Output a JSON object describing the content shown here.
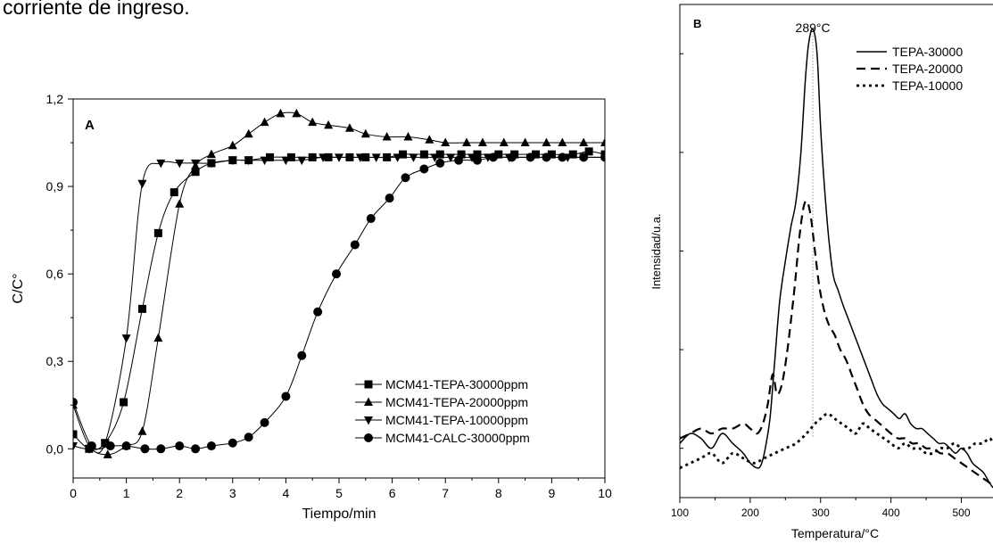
{
  "caption": "corriente de ingreso.",
  "chart_data": [
    {
      "id": "A",
      "type": "line",
      "panel_label": "A",
      "xlabel": "Tiempo/min",
      "ylabel": "C/C°",
      "xlim": [
        0,
        10
      ],
      "ylim": [
        -0.1,
        1.2
      ],
      "x_ticks": [
        0,
        1,
        2,
        3,
        4,
        5,
        6,
        7,
        8,
        9,
        10
      ],
      "x_tick_labels": [
        "0",
        "1",
        "2",
        "3",
        "4",
        "5",
        "6",
        "7",
        "8",
        "9",
        "10"
      ],
      "y_ticks": [
        0,
        0.3,
        0.6,
        0.9,
        1.2
      ],
      "y_tick_labels": [
        "0,0",
        "0,3",
        "0,6",
        "0,9",
        "1,2"
      ],
      "grid": false,
      "legend_position": "bottom-right",
      "series": [
        {
          "name": "MCM41-TEPA-30000ppm",
          "marker": "square",
          "x": [
            0,
            0.3,
            0.6,
            0.95,
            1.3,
            1.6,
            1.9,
            2.3,
            2.6,
            3.0,
            3.3,
            3.7,
            4.1,
            4.5,
            4.8,
            5.2,
            5.5,
            5.9,
            6.2,
            6.6,
            6.9,
            7.3,
            7.6,
            8.0,
            8.3,
            8.7,
            9.0,
            9.4,
            9.7,
            10.0
          ],
          "y": [
            0.05,
            0.0,
            0.02,
            0.16,
            0.48,
            0.74,
            0.88,
            0.95,
            0.98,
            0.99,
            0.99,
            1.0,
            1.0,
            1.0,
            1.0,
            1.0,
            1.0,
            1.0,
            1.01,
            1.01,
            1.01,
            1.01,
            1.01,
            1.01,
            1.01,
            1.01,
            1.01,
            1.01,
            1.02,
            1.01
          ]
        },
        {
          "name": "MCM41-TEPA-20000ppm",
          "marker": "triangle-up",
          "x": [
            0,
            0.3,
            0.65,
            1.0,
            1.3,
            1.6,
            2.0,
            2.3,
            2.6,
            3.0,
            3.3,
            3.6,
            3.9,
            4.2,
            4.5,
            4.8,
            5.2,
            5.5,
            5.9,
            6.3,
            6.7,
            7.0,
            7.4,
            7.7,
            8.1,
            8.5,
            8.9,
            9.2,
            9.6,
            10.0
          ],
          "y": [
            0.15,
            0.01,
            -0.02,
            0.01,
            0.06,
            0.38,
            0.84,
            0.97,
            1.01,
            1.04,
            1.08,
            1.12,
            1.15,
            1.15,
            1.12,
            1.11,
            1.1,
            1.08,
            1.07,
            1.07,
            1.06,
            1.05,
            1.05,
            1.05,
            1.05,
            1.05,
            1.05,
            1.05,
            1.05,
            1.05
          ]
        },
        {
          "name": "MCM41-TEPA-10000ppm",
          "marker": "triangle-down",
          "x": [
            0,
            0.3,
            0.6,
            1.0,
            1.3,
            1.65,
            2.0,
            2.3,
            2.6,
            3.0,
            3.3,
            3.6,
            4.0,
            4.3,
            4.7,
            5.0,
            5.4,
            5.7,
            6.1,
            6.4,
            6.8,
            7.1,
            7.5,
            7.8,
            8.2,
            8.6,
            8.9,
            9.3,
            9.6,
            10.0
          ],
          "y": [
            0.01,
            0.0,
            0.02,
            0.38,
            0.91,
            0.98,
            0.98,
            0.98,
            0.98,
            0.99,
            0.99,
            0.99,
            0.99,
            0.99,
            1.0,
            1.0,
            1.0,
            1.0,
            1.0,
            1.0,
            1.0,
            1.0,
            1.0,
            1.0,
            1.0,
            1.0,
            1.0,
            1.0,
            1.0,
            1.0
          ]
        },
        {
          "name": "MCM41-CALC-30000ppm",
          "marker": "circle",
          "x": [
            0,
            0.35,
            0.7,
            1.0,
            1.35,
            1.65,
            2.0,
            2.3,
            2.6,
            3.0,
            3.3,
            3.6,
            4.0,
            4.3,
            4.6,
            4.95,
            5.3,
            5.6,
            5.95,
            6.25,
            6.6,
            6.9,
            7.25,
            7.6,
            7.9,
            8.25,
            8.6,
            8.9,
            9.2,
            9.6,
            10.0
          ],
          "y": [
            0.16,
            0.01,
            0.01,
            0.01,
            0.0,
            0.0,
            0.01,
            0.0,
            0.01,
            0.02,
            0.04,
            0.09,
            0.18,
            0.32,
            0.47,
            0.6,
            0.7,
            0.79,
            0.86,
            0.93,
            0.96,
            0.98,
            0.99,
            0.99,
            1.0,
            1.0,
            1.0,
            1.0,
            1.0,
            1.0,
            1.0
          ]
        }
      ]
    },
    {
      "id": "B",
      "type": "line",
      "panel_label": "B",
      "xlabel": "Temperatura/°C",
      "ylabel": "Intensidad/u.a.",
      "xlim": [
        100,
        545
      ],
      "ylim": [
        0,
        1
      ],
      "x_ticks": [
        100,
        200,
        300,
        400,
        500
      ],
      "x_tick_labels": [
        "100",
        "200",
        "300",
        "400",
        "500"
      ],
      "y_ticks": [
        0.1,
        0.3,
        0.5,
        0.7,
        0.9
      ],
      "y_tick_labels": [],
      "grid": false,
      "legend_position": "top-right",
      "annotation": {
        "text": "289°C",
        "x": 289
      },
      "series": [
        {
          "name": "TEPA-30000",
          "style": "solid",
          "x": [
            100,
            115,
            130,
            145,
            160,
            175,
            190,
            200,
            210,
            215,
            220,
            228,
            235,
            242,
            250,
            258,
            265,
            272,
            278,
            283,
            289,
            295,
            300,
            306,
            312,
            318,
            325,
            332,
            340,
            348,
            356,
            364,
            372,
            380,
            388,
            396,
            404,
            412,
            420,
            428,
            436,
            444,
            452,
            460,
            468,
            476,
            484,
            492,
            500,
            508,
            516,
            524,
            532,
            540,
            545
          ],
          "y": [
            0.11,
            0.13,
            0.12,
            0.1,
            0.13,
            0.11,
            0.09,
            0.07,
            0.06,
            0.065,
            0.09,
            0.16,
            0.28,
            0.4,
            0.48,
            0.55,
            0.6,
            0.7,
            0.84,
            0.92,
            0.95,
            0.9,
            0.75,
            0.62,
            0.52,
            0.45,
            0.42,
            0.39,
            0.36,
            0.33,
            0.3,
            0.27,
            0.24,
            0.21,
            0.19,
            0.18,
            0.17,
            0.16,
            0.17,
            0.15,
            0.14,
            0.14,
            0.13,
            0.12,
            0.11,
            0.11,
            0.1,
            0.09,
            0.1,
            0.09,
            0.07,
            0.06,
            0.05,
            0.03,
            0.02
          ]
        },
        {
          "name": "TEPA-20000",
          "style": "dashed",
          "x": [
            100,
            115,
            130,
            145,
            160,
            175,
            190,
            200,
            210,
            218,
            225,
            232,
            238,
            245,
            252,
            258,
            264,
            270,
            276,
            281,
            286,
            292,
            298,
            305,
            312,
            320,
            328,
            336,
            344,
            352,
            360,
            368,
            376,
            384,
            392,
            400,
            410,
            420,
            430,
            440,
            450,
            460,
            470,
            480,
            490,
            500,
            510,
            520,
            530,
            540,
            545
          ],
          "y": [
            0.12,
            0.13,
            0.14,
            0.13,
            0.14,
            0.14,
            0.15,
            0.14,
            0.13,
            0.15,
            0.19,
            0.25,
            0.21,
            0.23,
            0.29,
            0.36,
            0.44,
            0.53,
            0.59,
            0.6,
            0.57,
            0.5,
            0.43,
            0.38,
            0.35,
            0.33,
            0.3,
            0.28,
            0.25,
            0.22,
            0.19,
            0.17,
            0.16,
            0.15,
            0.14,
            0.13,
            0.12,
            0.12,
            0.11,
            0.11,
            0.1,
            0.1,
            0.09,
            0.09,
            0.08,
            0.07,
            0.06,
            0.05,
            0.04,
            0.03,
            0.02
          ]
        },
        {
          "name": "TEPA-10000",
          "style": "dotted",
          "x": [
            100,
            115,
            130,
            145,
            160,
            175,
            190,
            205,
            220,
            235,
            250,
            265,
            280,
            292,
            300,
            310,
            320,
            330,
            340,
            350,
            360,
            370,
            380,
            390,
            400,
            410,
            420,
            430,
            440,
            450,
            460,
            470,
            480,
            490,
            500,
            510,
            520,
            530,
            540,
            545
          ],
          "y": [
            0.06,
            0.07,
            0.08,
            0.09,
            0.07,
            0.09,
            0.08,
            0.07,
            0.08,
            0.09,
            0.1,
            0.11,
            0.13,
            0.15,
            0.16,
            0.17,
            0.16,
            0.15,
            0.14,
            0.13,
            0.15,
            0.14,
            0.13,
            0.12,
            0.11,
            0.1,
            0.11,
            0.1,
            0.1,
            0.09,
            0.09,
            0.1,
            0.1,
            0.11,
            0.1,
            0.1,
            0.11,
            0.11,
            0.12,
            0.11
          ]
        }
      ]
    }
  ]
}
